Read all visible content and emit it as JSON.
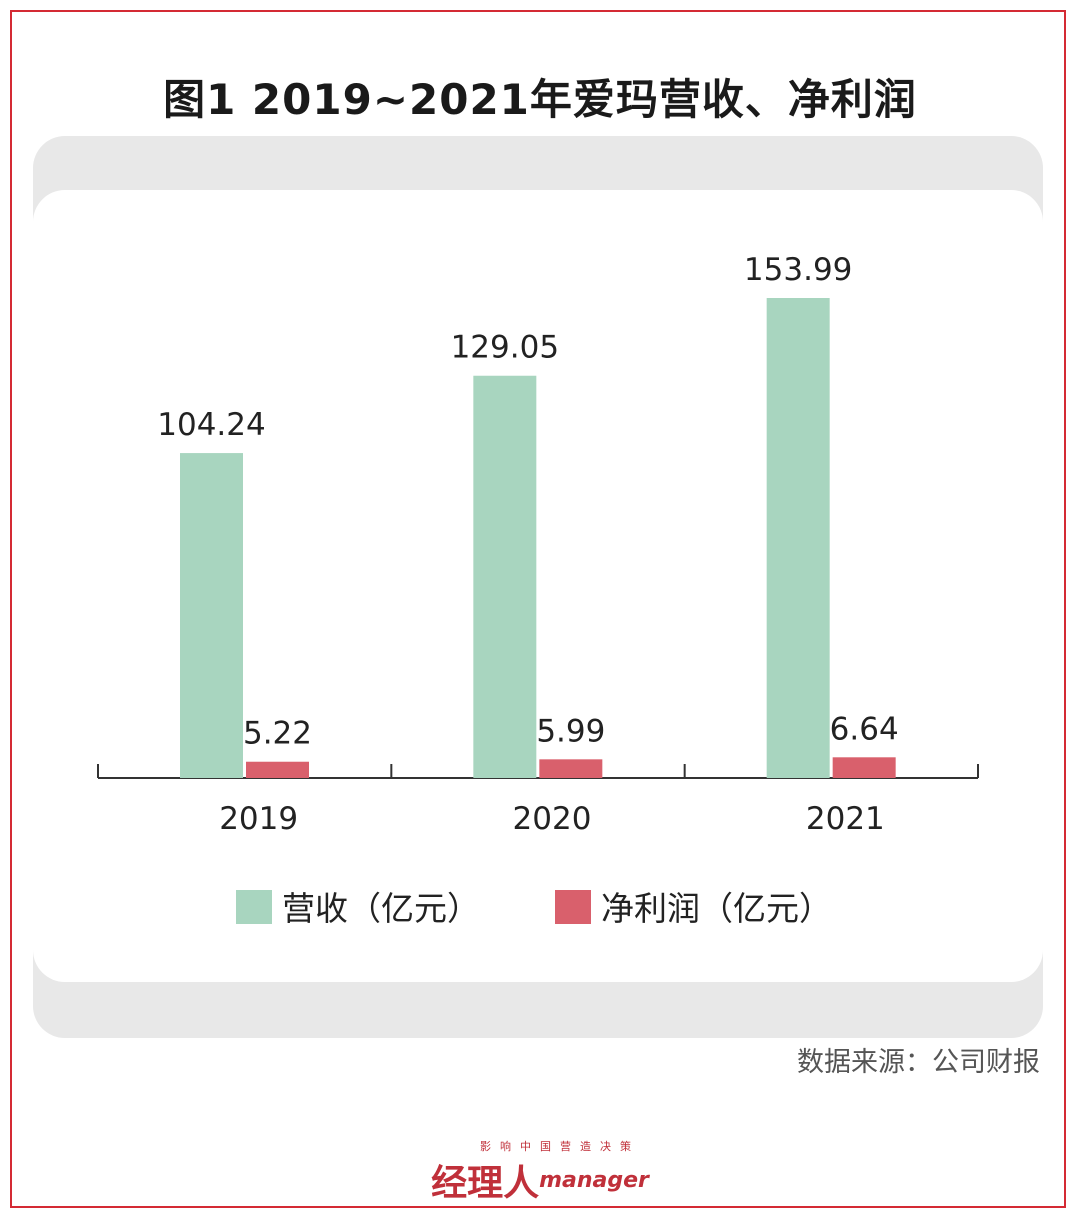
{
  "chart_data": {
    "type": "bar",
    "title": "图1  2019~2021年爱玛营收、净利润",
    "categories": [
      "2019",
      "2020",
      "2021"
    ],
    "series": [
      {
        "name": "营收（亿元）",
        "color": "#a8d5bf",
        "values": [
          104.24,
          129.05,
          153.99
        ],
        "labels": [
          "104.24",
          "129.05",
          "153.99"
        ]
      },
      {
        "name": "净利润（亿元）",
        "color": "#d9606c",
        "values": [
          5.22,
          5.99,
          6.64
        ],
        "labels": [
          "5.22",
          "5.99",
          "6.64"
        ]
      }
    ],
    "ylim": [
      0,
      160
    ],
    "xlabel": "",
    "ylabel": "",
    "grid": false,
    "legend_position": "bottom"
  },
  "source": "数据来源：公司财报",
  "logo": {
    "tagline": "影响中国营造决策",
    "brand_cn": "经理人",
    "brand_en": "manager"
  }
}
